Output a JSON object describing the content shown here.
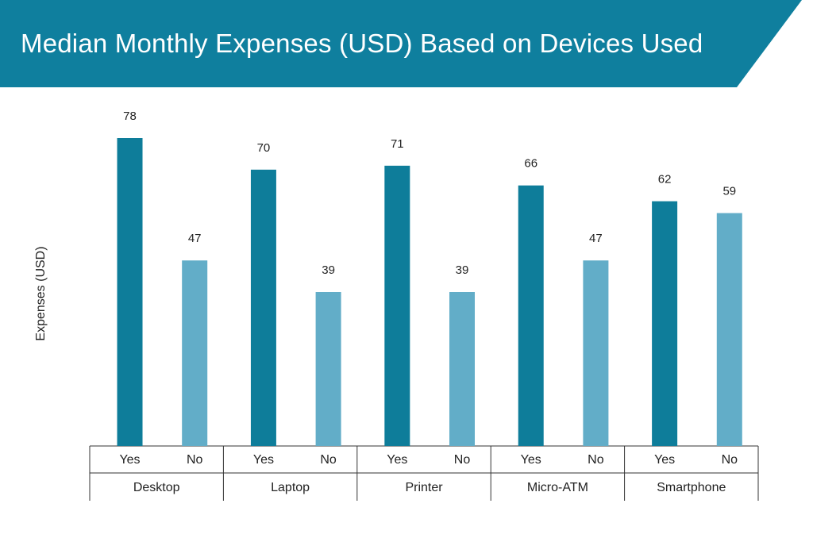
{
  "title": "Median Monthly Expenses (USD) Based on Devices Used",
  "colors": {
    "banner": "#0f7f9e",
    "yes": "#0e7d9a",
    "no": "#62adc8",
    "axis": "#333333"
  },
  "chart_data": {
    "type": "bar",
    "title": "Median Monthly Expenses (USD) Based on Devices Used",
    "xlabel": "",
    "ylabel": "Expenses (USD)",
    "groups": [
      {
        "name": "Desktop",
        "categories": [
          "Yes",
          "No"
        ],
        "values": [
          78,
          47
        ]
      },
      {
        "name": "Laptop",
        "categories": [
          "Yes",
          "No"
        ],
        "values": [
          70,
          39
        ]
      },
      {
        "name": "Printer",
        "categories": [
          "Yes",
          "No"
        ],
        "values": [
          71,
          39
        ]
      },
      {
        "name": "Micro-ATM",
        "categories": [
          "Yes",
          "No"
        ],
        "values": [
          66,
          47
        ]
      },
      {
        "name": "Smartphone",
        "categories": [
          "Yes",
          "No"
        ],
        "values": [
          62,
          59
        ]
      }
    ],
    "ylim": [
      0,
      78
    ],
    "grid": false,
    "legend": "none"
  }
}
